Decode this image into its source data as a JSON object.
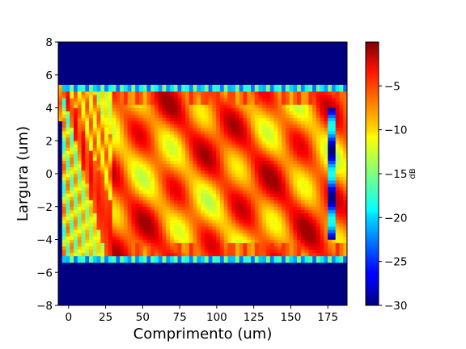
{
  "chart_data": {
    "type": "heatmap",
    "title": "",
    "xlabel": "Comprimento (um)",
    "ylabel": "Largura (um)",
    "xlim": [
      -7,
      188
    ],
    "ylim": [
      -8,
      8
    ],
    "xticks": [
      0,
      25,
      50,
      75,
      100,
      125,
      150,
      175
    ],
    "yticks": [
      -8,
      -6,
      -4,
      -2,
      0,
      2,
      4,
      6,
      8
    ],
    "colormap": "jet",
    "colorbar": {
      "label": "dB",
      "range": [
        -30,
        0
      ],
      "ticks": [
        -30,
        -25,
        -20,
        -15,
        -10,
        -5
      ]
    },
    "field": {
      "description_values": "intensity in dB",
      "background_db": -30,
      "waveguide_y_range": [
        -5,
        5
      ],
      "input_center_y": 4.3,
      "input_x": 0,
      "self_image_x": 30,
      "self_image_y": -4.3,
      "field_end_x": 187,
      "edge_level_db": -17,
      "beam_level_db": -5
    }
  }
}
